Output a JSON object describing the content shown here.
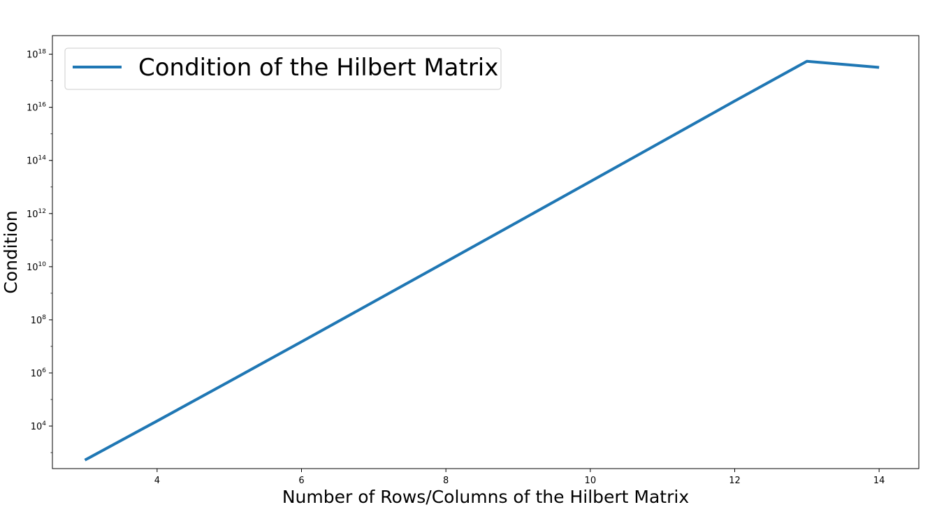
{
  "chart_data": {
    "type": "line",
    "title": "",
    "xlabel": "Number of Rows/Columns of the Hilbert Matrix",
    "ylabel": "Condition",
    "xlim": [
      2.55,
      14.55
    ],
    "ylim": [
      250,
      5e+18
    ],
    "yscale": "log",
    "grid": false,
    "legend_position": "top-left",
    "x_ticks": [
      4,
      6,
      8,
      10,
      12,
      14
    ],
    "y_ticks": [
      {
        "value": 10000.0,
        "base": "10",
        "exp": "4"
      },
      {
        "value": 1000000.0,
        "base": "10",
        "exp": "6"
      },
      {
        "value": 100000000.0,
        "base": "10",
        "exp": "8"
      },
      {
        "value": 10000000000.0,
        "base": "10",
        "exp": "10"
      },
      {
        "value": 1000000000000.0,
        "base": "10",
        "exp": "12"
      },
      {
        "value": 100000000000000.0,
        "base": "10",
        "exp": "14"
      },
      {
        "value": 1e+16,
        "base": "10",
        "exp": "16"
      },
      {
        "value": 1e+18,
        "base": "10",
        "exp": "18"
      }
    ],
    "series": [
      {
        "name": "Condition of the Hilbert Matrix",
        "color": "#1f77b4",
        "x": [
          3,
          4,
          5,
          6,
          7,
          8,
          9,
          10,
          11,
          12,
          13,
          14
        ],
        "y": [
          524.0568,
          15513.74,
          476607.3,
          14951058,
          475367357,
          15257575539,
          493153755941,
          16024404106127,
          522478160712081,
          17232952063079400,
          541636022000000000,
          318000000000000000
        ]
      }
    ]
  }
}
